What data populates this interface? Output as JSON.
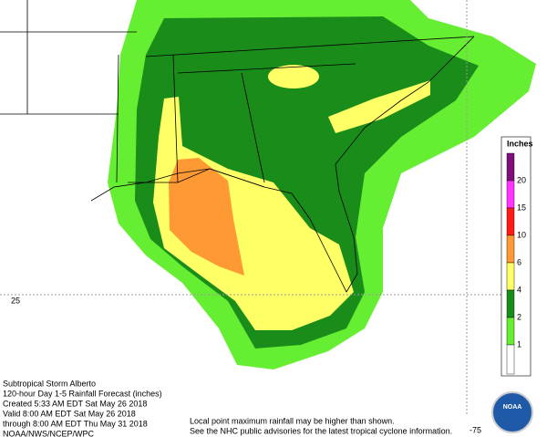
{
  "legend": {
    "title": "Inches",
    "labels": [
      "20",
      "15",
      "10",
      "6",
      "4",
      "2",
      "1"
    ],
    "colors": [
      "#7f0f7f",
      "#ff33ff",
      "#ff1a1a",
      "#ff9933",
      "#ffff66",
      "#1a8c1a",
      "#66ee33",
      "#ffffff"
    ]
  },
  "grid_labels": {
    "lat": "25",
    "lon": "-75"
  },
  "info": {
    "lines": [
      "Subtropical Storm Alberto",
      "120-hour Day 1-5 Rainfall Forecast (inches)",
      "Created 5:33 AM EDT Sat May 26 2018",
      "Valid 8:00 AM EDT Sat May 26 2018",
      "through 8:00 AM EDT Thu May 31 2018",
      "NOAA/NWS/NCEP/WPC"
    ]
  },
  "note": {
    "lines": [
      "Local point maximum rainfall may be higher than shown.",
      "See the NHC public advisories for the latest tropical cyclone information."
    ]
  },
  "logo": {
    "text": "NOAA"
  }
}
